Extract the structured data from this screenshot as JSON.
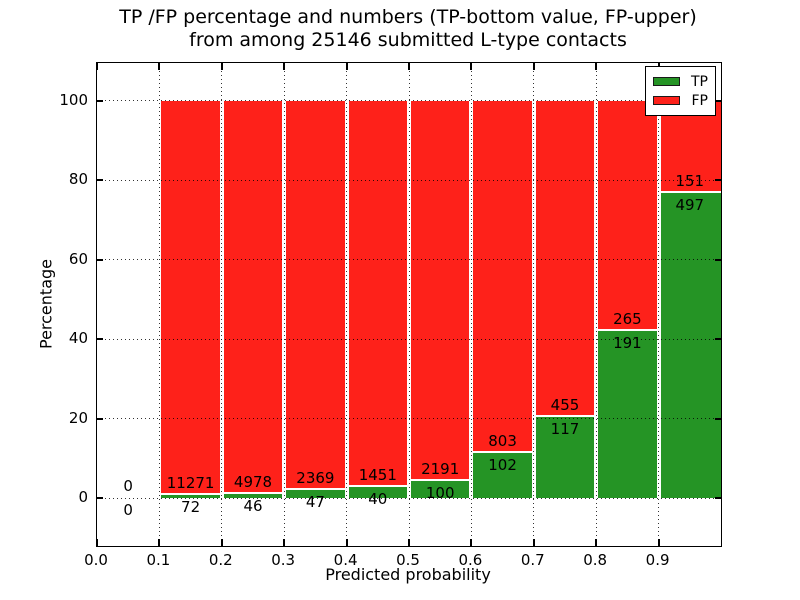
{
  "title": {
    "line1": "TP /FP percentage and numbers (TP-bottom value, FP-upper)",
    "line2": "from among 25146 submitted L-type contacts"
  },
  "y_axis": {
    "label": "Percentage",
    "tick_labels": [
      "0",
      "20",
      "40",
      "60",
      "80",
      "100"
    ],
    "tick_values": [
      0,
      20,
      40,
      60,
      80,
      100
    ]
  },
  "x_axis": {
    "label": "Predicted probability",
    "tick_labels": [
      "0.0",
      "0.1",
      "0.2",
      "0.3",
      "0.4",
      "0.5",
      "0.6",
      "0.7",
      "0.8",
      "0.9"
    ],
    "tick_values": [
      0,
      0.1,
      0.2,
      0.3,
      0.4,
      0.5,
      0.6,
      0.7,
      0.8,
      0.9
    ]
  },
  "legend": {
    "entries": [
      {
        "label": "TP",
        "color": "#259425"
      },
      {
        "label": "FP",
        "color": "#fe211a"
      }
    ]
  },
  "colors": {
    "tp": "#259425",
    "fp": "#fe211a",
    "bar_edge": "#ffffff",
    "grid": "#000000"
  },
  "chart_data": {
    "type": "bar",
    "stacked": true,
    "unit": "percent",
    "title": "TP /FP percentage and numbers (TP-bottom value, FP-upper) from among 25146 submitted L-type contacts",
    "xlabel": "Predicted probability",
    "ylabel": "Percentage",
    "xlim": [
      0,
      1
    ],
    "ylim": [
      -12,
      109.5
    ],
    "grid": "dotted, drawn above bars",
    "legend_position": "upper right",
    "bin_width": 0.1,
    "bins": [
      {
        "range": "0.0-0.1",
        "tp": 0,
        "fp": 0,
        "tp_percent": null,
        "fp_percent": null
      },
      {
        "range": "0.1-0.2",
        "tp": 72,
        "fp": 11271,
        "tp_percent": 0.63,
        "fp_percent": 99.37
      },
      {
        "range": "0.2-0.3",
        "tp": 46,
        "fp": 4978,
        "tp_percent": 0.92,
        "fp_percent": 99.08
      },
      {
        "range": "0.3-0.4",
        "tp": 47,
        "fp": 2369,
        "tp_percent": 1.95,
        "fp_percent": 98.05
      },
      {
        "range": "0.4-0.5",
        "tp": 40,
        "fp": 1451,
        "tp_percent": 2.68,
        "fp_percent": 97.32
      },
      {
        "range": "0.5-0.6",
        "tp": 100,
        "fp": 2191,
        "tp_percent": 4.37,
        "fp_percent": 95.63
      },
      {
        "range": "0.6-0.7",
        "tp": 102,
        "fp": 803,
        "tp_percent": 11.27,
        "fp_percent": 88.73
      },
      {
        "range": "0.7-0.8",
        "tp": 117,
        "fp": 455,
        "tp_percent": 20.45,
        "fp_percent": 79.55
      },
      {
        "range": "0.8-0.9",
        "tp": 191,
        "fp": 265,
        "tp_percent": 41.89,
        "fp_percent": 58.11
      },
      {
        "range": "0.9-1.0",
        "tp": 497,
        "fp": 151,
        "tp_percent": 76.7,
        "fp_percent": 23.3
      }
    ]
  }
}
